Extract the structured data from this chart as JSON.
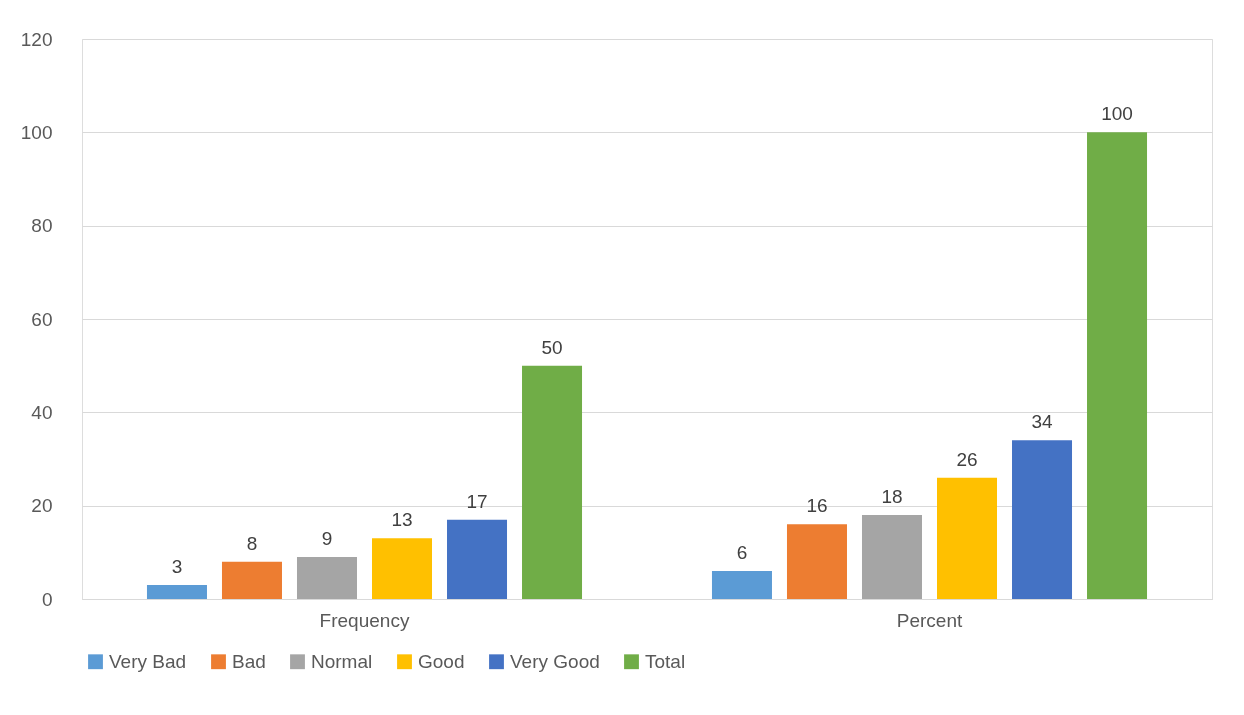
{
  "chart_data": {
    "type": "bar",
    "categories": [
      "Frequency",
      "Percent"
    ],
    "series": [
      {
        "name": "Very Bad",
        "color": "#5b9bd5",
        "values": [
          3,
          6
        ]
      },
      {
        "name": "Bad",
        "color": "#ed7d31",
        "values": [
          8,
          16
        ]
      },
      {
        "name": "Normal",
        "color": "#a5a5a5",
        "values": [
          9,
          18
        ]
      },
      {
        "name": "Good",
        "color": "#ffc000",
        "values": [
          13,
          26
        ]
      },
      {
        "name": "Very Good",
        "color": "#4472c4",
        "values": [
          17,
          34
        ]
      },
      {
        "name": "Total",
        "color": "#70ad47",
        "values": [
          50,
          100
        ]
      }
    ],
    "ylim": [
      0,
      120
    ],
    "yticks": [
      0,
      20,
      40,
      60,
      80,
      100,
      120
    ],
    "grid": "y",
    "legend": "bottom",
    "data_labels": true
  }
}
